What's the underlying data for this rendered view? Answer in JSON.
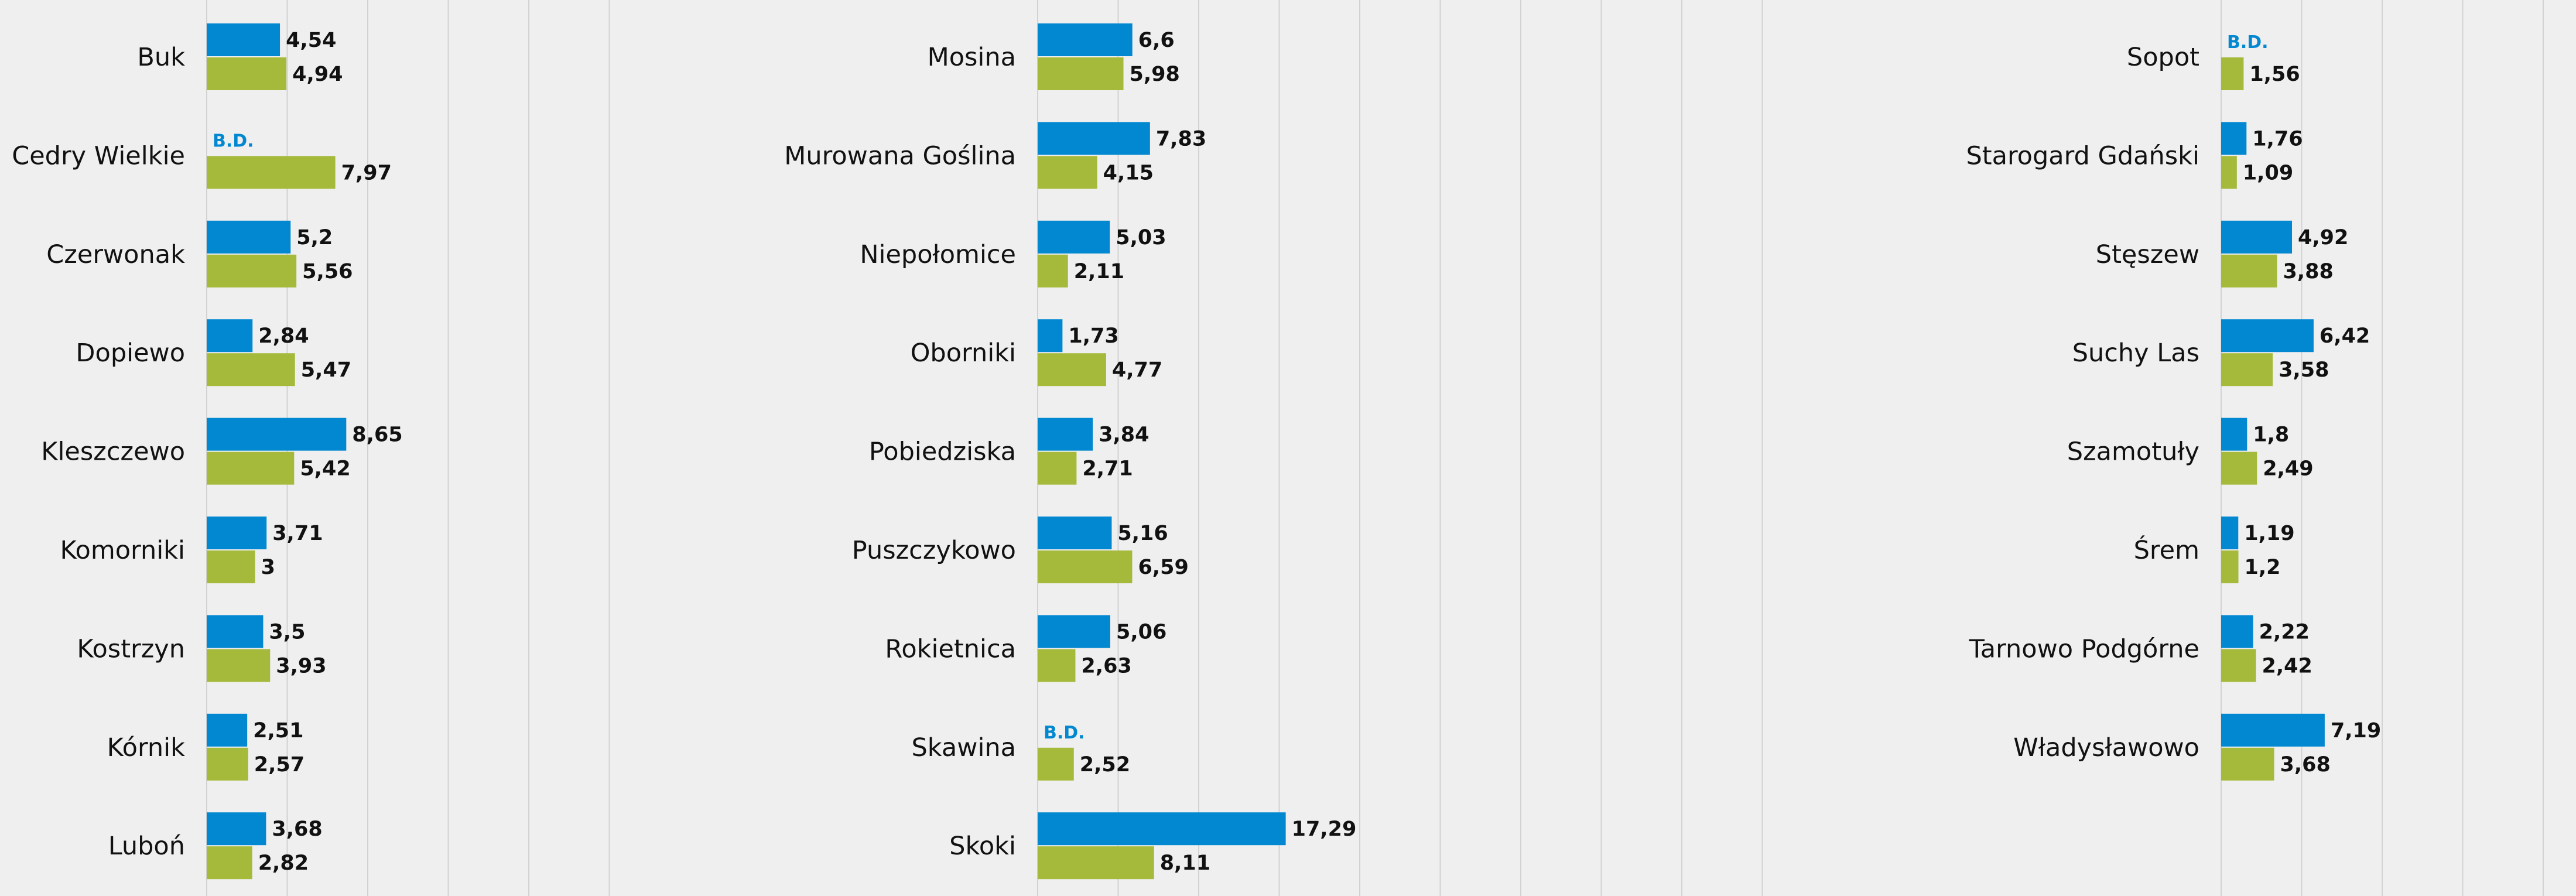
{
  "colors": {
    "series_a": "#0288d1",
    "series_b": "#a5b93b",
    "background": "#efefef",
    "grid": "#d2d2d2",
    "text": "#111111"
  },
  "no_data_label": "B.D.",
  "chart_data": [
    {
      "type": "bar",
      "orientation": "horizontal",
      "categories": [
        "Buk",
        "Cedry Wielkie",
        "Czerwonak",
        "Dopiewo",
        "Kleszczewo",
        "Komorniki",
        "Kostrzyn",
        "Kórnik",
        "Luboń"
      ],
      "series": [
        {
          "values": [
            4.54,
            null,
            5.2,
            2.84,
            8.65,
            3.71,
            3.5,
            2.51,
            3.68
          ],
          "labels": [
            "4,54",
            "B.D.",
            "5,2",
            "2,84",
            "8,65",
            "3,71",
            "3,5",
            "2,51",
            "3,68"
          ]
        },
        {
          "values": [
            4.94,
            7.97,
            5.56,
            5.47,
            5.42,
            3,
            3.93,
            2.57,
            2.82
          ],
          "labels": [
            "4,94",
            "7,97",
            "5,56",
            "5,47",
            "5,42",
            "3",
            "3,93",
            "2,57",
            "2,82"
          ]
        }
      ],
      "grid": true
    },
    {
      "type": "bar",
      "orientation": "horizontal",
      "categories": [
        "Mosina",
        "Murowana Goślina",
        "Niepołomice",
        "Oborniki",
        "Pobiedziska",
        "Puszczykowo",
        "Rokietnica",
        "Skawina",
        "Skoki"
      ],
      "series": [
        {
          "values": [
            6.6,
            7.83,
            5.03,
            1.73,
            3.84,
            5.16,
            5.06,
            null,
            17.29
          ],
          "labels": [
            "6,6",
            "7,83",
            "5,03",
            "1,73",
            "3,84",
            "5,16",
            "5,06",
            "B.D.",
            "17,29"
          ]
        },
        {
          "values": [
            5.98,
            4.15,
            2.11,
            4.77,
            2.71,
            6.59,
            2.63,
            2.52,
            8.11
          ],
          "labels": [
            "5,98",
            "4,15",
            "2,11",
            "4,77",
            "2,71",
            "6,59",
            "2,63",
            "2,52",
            "8,11"
          ]
        }
      ],
      "grid": true
    },
    {
      "type": "bar",
      "orientation": "horizontal",
      "categories": [
        "Sopot",
        "Starogard Gdański",
        "Stęszew",
        "Suchy Las",
        "Szamotuły",
        "Śrem",
        "Tarnowo Podgórne",
        "Władysławowo"
      ],
      "series": [
        {
          "values": [
            null,
            1.76,
            4.92,
            6.42,
            1.8,
            1.19,
            2.22,
            7.19
          ],
          "labels": [
            "B.D.",
            "1,76",
            "4,92",
            "6,42",
            "1,8",
            "1,19",
            "2,22",
            "7,19"
          ]
        },
        {
          "values": [
            1.56,
            1.09,
            3.88,
            3.58,
            2.49,
            1.2,
            2.42,
            3.68
          ],
          "labels": [
            "1,56",
            "1,09",
            "3,88",
            "3,58",
            "2,49",
            "1,2",
            "2,42",
            "3,68"
          ]
        }
      ],
      "grid": true
    }
  ]
}
